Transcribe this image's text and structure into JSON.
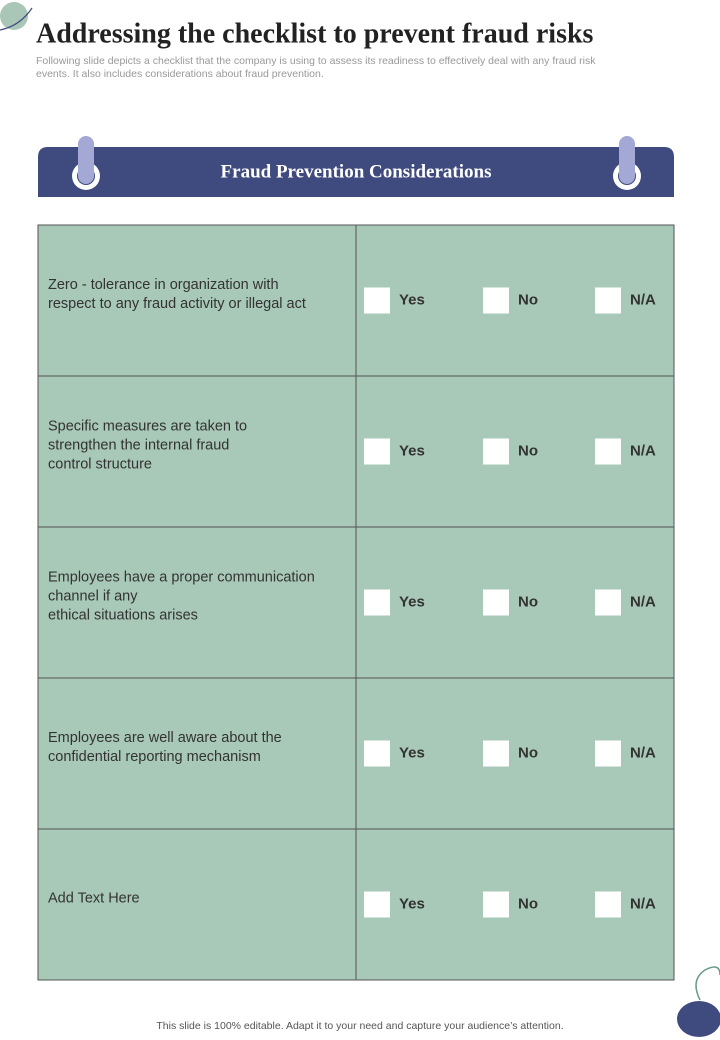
{
  "header": {
    "title": "Addressing the checklist to prevent fraud risks",
    "subtitle_lines": [
      "Following slide depicts a checklist that the company is using to assess its readiness to effectively deal with any fraud risk",
      "events. It also includes considerations about fraud prevention."
    ]
  },
  "card": {
    "title": "Fraud Prevention Considerations",
    "options": [
      "Yes",
      "No",
      "N/A"
    ],
    "rows": [
      {
        "lines": [
          "Zero - tolerance in organization with",
          "respect to any fraud activity or illegal act"
        ]
      },
      {
        "lines": [
          "Specific measures are taken to",
          "strengthen  the internal fraud",
          "control structure"
        ]
      },
      {
        "lines": [
          "Employees have a proper communication",
          "channel if any",
          "ethical situations arises"
        ]
      },
      {
        "lines": [
          "Employees are well aware about the",
          "confidential reporting mechanism"
        ]
      },
      {
        "lines": [
          "Add Text Here"
        ]
      }
    ]
  },
  "footer": {
    "note": "This slide is 100% editable. Adapt it to your need and capture your audience’s attention."
  }
}
